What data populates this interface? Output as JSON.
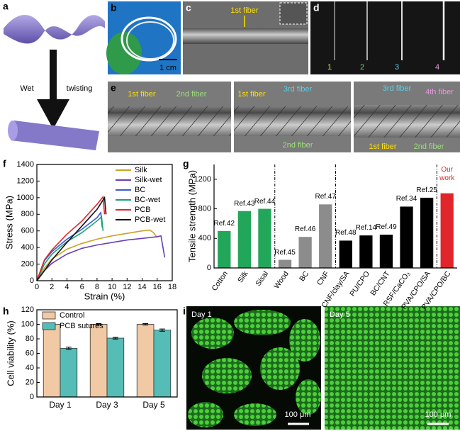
{
  "panels": {
    "a": {
      "label": "a",
      "texts": [
        "Wet",
        "twisting"
      ]
    },
    "b": {
      "label": "b",
      "scale": "1 cm"
    },
    "c": {
      "label": "c",
      "annotation": "1st fiber"
    },
    "d": {
      "label": "d",
      "fibers": [
        "1",
        "2",
        "3",
        "4"
      ]
    },
    "e": {
      "label": "e",
      "annotations": [
        "1st fiber",
        "2nd fiber",
        "1st fiber",
        "3rd fiber",
        "2nd fiber",
        "3rd fiber",
        "4th fiber",
        "1st fiber",
        "2nd fiber"
      ]
    },
    "f": {
      "label": "f"
    },
    "g": {
      "label": "g"
    },
    "h": {
      "label": "h"
    },
    "i": {
      "label": "i",
      "images": [
        {
          "day": "Day 1",
          "scale": "100 μm"
        },
        {
          "day": "Day 5",
          "scale": "100 μm"
        }
      ]
    }
  },
  "chart_data": [
    {
      "type": "line",
      "xlabel": "Strain (%)",
      "ylabel": "Stress (MPa)",
      "xlim": [
        0,
        18
      ],
      "xticks": [
        0,
        2,
        4,
        6,
        8,
        10,
        12,
        14,
        16,
        18
      ],
      "ylim": [
        0,
        1400
      ],
      "yticks": [
        0,
        200,
        400,
        600,
        800,
        1000,
        1200,
        1400
      ],
      "legend": "upper right",
      "series": [
        {
          "name": "Silk",
          "color": "#c9a227",
          "x": [
            0,
            1,
            2,
            4,
            6,
            8,
            10,
            12,
            14,
            15,
            15.5,
            16
          ],
          "values": [
            0,
            150,
            260,
            380,
            450,
            500,
            540,
            570,
            600,
            610,
            580,
            520
          ]
        },
        {
          "name": "Silk-wet",
          "color": "#6a3fb5",
          "x": [
            0,
            1,
            2,
            4,
            6,
            8,
            10,
            12,
            14,
            16,
            16.5,
            17
          ],
          "values": [
            0,
            120,
            210,
            320,
            390,
            430,
            460,
            490,
            510,
            530,
            540,
            280
          ]
        },
        {
          "name": "BC",
          "color": "#3b5bdb",
          "x": [
            0,
            1,
            2,
            4,
            6,
            8,
            8.5,
            8.7
          ],
          "values": [
            0,
            240,
            350,
            500,
            620,
            760,
            820,
            640
          ]
        },
        {
          "name": "BC-wet",
          "color": "#1aa36f",
          "x": [
            0,
            1,
            2,
            4,
            6,
            8,
            8.6,
            8.8
          ],
          "values": [
            0,
            200,
            320,
            470,
            580,
            720,
            770,
            600
          ]
        },
        {
          "name": "PCB",
          "color": "#e0262b",
          "x": [
            0,
            1,
            2,
            4,
            6,
            8,
            8.8,
            9
          ],
          "values": [
            0,
            250,
            370,
            560,
            720,
            920,
            1010,
            800
          ]
        },
        {
          "name": "PCB-wet",
          "color": "#111111",
          "x": [
            0,
            1,
            2,
            4,
            6,
            8,
            9,
            9.2
          ],
          "values": [
            0,
            120,
            250,
            460,
            660,
            860,
            1000,
            800
          ]
        }
      ]
    },
    {
      "type": "bar",
      "ylabel": "Tensile strength (MPa)",
      "ylim": [
        0,
        1400
      ],
      "yticks": [
        0,
        400,
        800,
        1200
      ],
      "categories": [
        "Cotton",
        "Silk",
        "Sisal",
        "Wood",
        "BC",
        "CNF",
        "CNF/clay/SA",
        "PU/CPO",
        "BC/CNT",
        "RSF/CaCO₃",
        "PVA/CPO/SA",
        "PVA/CPO/BC"
      ],
      "values": [
        500,
        770,
        800,
        110,
        420,
        860,
        370,
        440,
        450,
        830,
        950,
        1010
      ],
      "colors": [
        "#21a65a",
        "#21a65a",
        "#21a65a",
        "#8c8c8c",
        "#8c8c8c",
        "#8c8c8c",
        "#000000",
        "#000000",
        "#000000",
        "#000000",
        "#000000",
        "#e0262b"
      ],
      "bar_labels": [
        "Ref.42",
        "Ref.43",
        "Ref.44",
        "Ref.45",
        "Ref.46",
        "Ref.47",
        "Ref.48",
        "Ref.14",
        "Ref.49",
        "Ref.34",
        "Ref.25",
        "Our work"
      ],
      "highlight_index": 11,
      "separators_after": [
        2,
        5,
        10
      ]
    },
    {
      "type": "grouped_bar",
      "ylabel": "Cell viability (%)",
      "ylim": [
        0,
        120
      ],
      "yticks": [
        0,
        20,
        40,
        60,
        80,
        100,
        120
      ],
      "legend": "upper left",
      "categories": [
        "Day 1",
        "Day 3",
        "Day 5"
      ],
      "series": [
        {
          "name": "Control",
          "color": "#f1c9a5",
          "values": [
            100,
            100,
            100
          ],
          "errors": [
            0.5,
            1,
            1
          ]
        },
        {
          "name": "PCB sutures",
          "color": "#55bdb6",
          "values": [
            67,
            81,
            92
          ],
          "errors": [
            1.5,
            1.2,
            1.5
          ]
        }
      ]
    }
  ]
}
